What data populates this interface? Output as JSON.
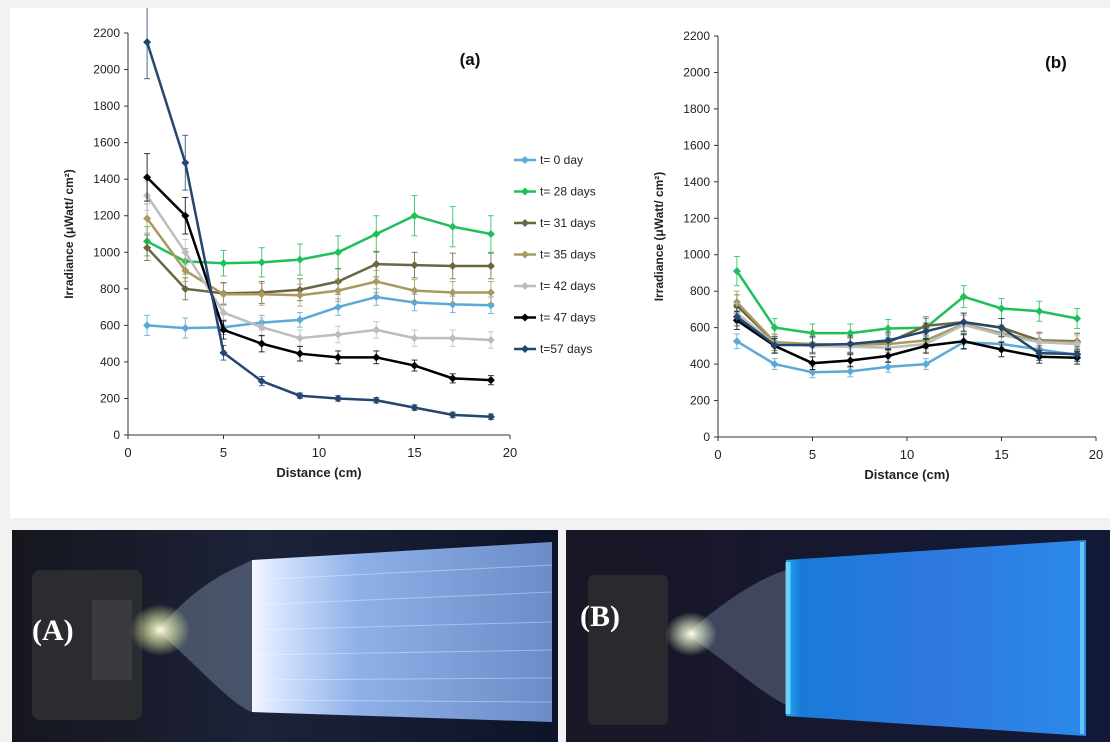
{
  "chart_data": [
    {
      "type": "line",
      "panel_label": "(a)",
      "xlabel": "Distance (cm)",
      "ylabel": "Irradiance (μWatt/ cm²)",
      "xlim": [
        0,
        20
      ],
      "ylim": [
        0,
        2200
      ],
      "x_ticks": [
        "0",
        "5",
        "10",
        "15",
        "20"
      ],
      "y_ticks": [
        "0",
        "200",
        "400",
        "600",
        "800",
        "1000",
        "1200",
        "1400",
        "1600",
        "1800",
        "2000",
        "2200"
      ],
      "grid": false,
      "legend_position": "right",
      "x": [
        1,
        3,
        5,
        7,
        9,
        11,
        13,
        15,
        17,
        19
      ],
      "series": [
        {
          "name": "t= 0 day",
          "color": "#5aa9d6",
          "marker": "diamond",
          "values": [
            600,
            585,
            590,
            615,
            630,
            700,
            755,
            725,
            715,
            710
          ],
          "errors": [
            55,
            55,
            40,
            40,
            40,
            45,
            45,
            45,
            45,
            45
          ]
        },
        {
          "name": "t= 28 days",
          "color": "#1fbf5a",
          "marker": "diamond",
          "values": [
            1060,
            950,
            940,
            945,
            960,
            1000,
            1100,
            1200,
            1140,
            1100
          ],
          "errors": [
            80,
            70,
            70,
            80,
            85,
            90,
            100,
            110,
            110,
            100
          ]
        },
        {
          "name": "t= 31 days",
          "color": "#6b6540",
          "marker": "diamond",
          "values": [
            1025,
            800,
            775,
            780,
            795,
            840,
            935,
            930,
            925,
            925
          ],
          "errors": [
            70,
            60,
            60,
            60,
            60,
            70,
            70,
            70,
            70,
            70
          ]
        },
        {
          "name": "t= 35 days",
          "color": "#a89a5f",
          "marker": "diamond",
          "values": [
            1185,
            900,
            770,
            770,
            765,
            790,
            840,
            790,
            780,
            780
          ],
          "errors": [
            80,
            60,
            60,
            60,
            60,
            60,
            60,
            60,
            60,
            60
          ]
        },
        {
          "name": "t= 42 days",
          "color": "#bdbdbd",
          "marker": "diamond",
          "values": [
            1310,
            1000,
            670,
            590,
            530,
            550,
            575,
            530,
            530,
            520
          ],
          "errors": [
            80,
            70,
            50,
            50,
            45,
            45,
            45,
            45,
            45,
            45
          ]
        },
        {
          "name": "t= 47 days",
          "color": "#000000",
          "marker": "diamond",
          "values": [
            1410,
            1200,
            575,
            500,
            445,
            425,
            425,
            380,
            310,
            300
          ],
          "errors": [
            130,
            100,
            50,
            45,
            40,
            35,
            35,
            30,
            25,
            25
          ]
        },
        {
          "name": "t=57 days",
          "color": "#24476f",
          "marker": "diamond",
          "values": [
            2150,
            1490,
            450,
            295,
            215,
            200,
            190,
            150,
            110,
            100
          ],
          "errors": [
            200,
            150,
            40,
            25,
            15,
            15,
            15,
            15,
            15,
            15
          ]
        }
      ]
    },
    {
      "type": "line",
      "panel_label": "(b)",
      "xlabel": "Distance (cm)",
      "ylabel": "Irradiance (μWatt/ cm²)",
      "xlim": [
        0,
        20
      ],
      "ylim": [
        0,
        2200
      ],
      "x_ticks": [
        "0",
        "5",
        "10",
        "15",
        "20"
      ],
      "y_ticks": [
        "0",
        "200",
        "400",
        "600",
        "800",
        "1000",
        "1200",
        "1400",
        "1600",
        "1800",
        "2000",
        "2200"
      ],
      "grid": false,
      "x": [
        1,
        3,
        5,
        7,
        9,
        11,
        13,
        15,
        17,
        19
      ],
      "series": [
        {
          "name": "t= 0 day",
          "color": "#5aa9d6",
          "marker": "diamond",
          "values": [
            525,
            400,
            355,
            360,
            385,
            400,
            520,
            510,
            480,
            450
          ],
          "errors": [
            40,
            30,
            30,
            30,
            30,
            30,
            40,
            40,
            35,
            35
          ]
        },
        {
          "name": "t= 28 days",
          "color": "#1fbf5a",
          "marker": "diamond",
          "values": [
            910,
            600,
            570,
            570,
            595,
            600,
            770,
            705,
            690,
            650
          ],
          "errors": [
            80,
            50,
            50,
            50,
            50,
            50,
            60,
            55,
            55,
            55
          ]
        },
        {
          "name": "t= 31 days",
          "color": "#6b6540",
          "marker": "diamond",
          "values": [
            720,
            520,
            500,
            500,
            520,
            610,
            630,
            600,
            530,
            525
          ],
          "errors": [
            60,
            45,
            45,
            45,
            45,
            50,
            50,
            50,
            45,
            45
          ]
        },
        {
          "name": "t= 35 days",
          "color": "#a89a5f",
          "marker": "diamond",
          "values": [
            740,
            520,
            510,
            505,
            510,
            530,
            620,
            570,
            525,
            520
          ],
          "errors": [
            60,
            45,
            45,
            45,
            45,
            45,
            50,
            45,
            45,
            45
          ]
        },
        {
          "name": "t= 42 days",
          "color": "#bdbdbd",
          "marker": "diamond",
          "values": [
            680,
            510,
            500,
            495,
            490,
            510,
            615,
            560,
            520,
            510
          ],
          "errors": [
            55,
            45,
            45,
            45,
            45,
            45,
            50,
            45,
            45,
            45
          ]
        },
        {
          "name": "t= 47 days",
          "color": "#000000",
          "marker": "diamond",
          "values": [
            640,
            500,
            405,
            420,
            445,
            500,
            525,
            480,
            440,
            435
          ],
          "errors": [
            50,
            40,
            35,
            35,
            35,
            40,
            40,
            40,
            35,
            35
          ]
        },
        {
          "name": "t=57 days",
          "color": "#24476f",
          "marker": "diamond",
          "values": [
            660,
            505,
            505,
            510,
            530,
            580,
            630,
            600,
            460,
            455
          ],
          "errors": [
            50,
            45,
            45,
            45,
            45,
            45,
            50,
            50,
            40,
            40
          ]
        }
      ]
    }
  ],
  "photos": [
    {
      "label": "(A)"
    },
    {
      "label": "(B)"
    }
  ]
}
